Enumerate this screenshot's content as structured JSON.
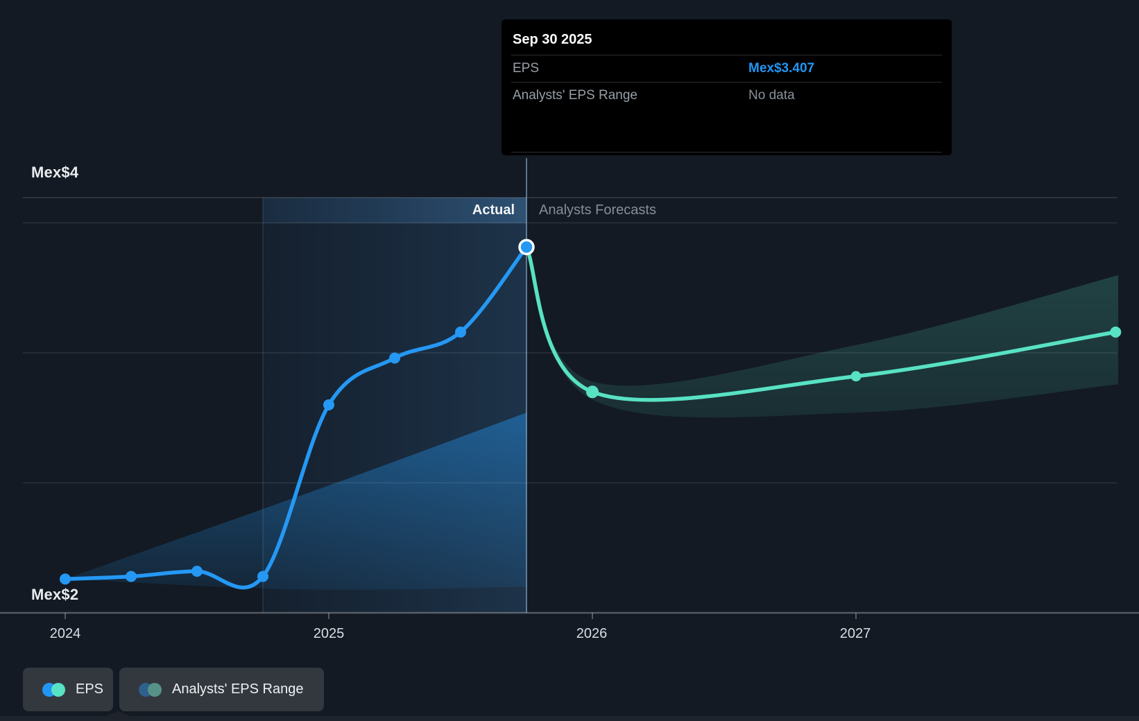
{
  "tooltip": {
    "title": "Sep 30 2025",
    "rows": [
      {
        "label": "EPS",
        "value": "Mex$3.407",
        "highlight": true
      },
      {
        "label": "Analysts' EPS Range",
        "value": "No data",
        "highlight": false
      }
    ]
  },
  "header": {
    "actual_label": "Actual",
    "forecast_label": "Analysts Forecasts"
  },
  "y_axis": {
    "top_label": "Mex$4",
    "bottom_label": "Mex$2"
  },
  "x_axis": {
    "ticks": [
      "2024",
      "2025",
      "2026",
      "2027"
    ]
  },
  "legend": [
    {
      "id": "eps",
      "label": "EPS",
      "dot_colors": [
        "#2196f3",
        "#57e3c4"
      ]
    },
    {
      "id": "range",
      "label": "Analysts' EPS Range",
      "dot_colors": [
        "#2e618c",
        "#579288"
      ]
    }
  ],
  "colors": {
    "background": "#131a23",
    "eps_actual_line": "#2598f4",
    "eps_forecast_line": "#58e2c3",
    "actual_band": "rgba(36,152,244,0.38)",
    "forecast_band": "rgba(88,226,195,0.17)",
    "tooltip_value": "#2196f3",
    "divider_line": "rgba(151,193,229,0.55)",
    "gridline": "rgba(255,255,255,0.10)"
  },
  "chart_data": {
    "type": "line",
    "title": "EPS: actual vs analysts forecasts (Mex$)",
    "currency_prefix": "Mex$",
    "xlim": [
      2023.95,
      2028.0
    ],
    "ylim": [
      2,
      4
    ],
    "grid": true,
    "gridline_values": [
      3.5,
      3.0,
      2.5
    ],
    "x_tick_years": [
      2024,
      2025,
      2026,
      2027
    ],
    "divider_year": 2025.75,
    "highlight_span_years": [
      2024.75,
      2025.75
    ],
    "tooltip_point": {
      "date": "Sep 30 2025",
      "eps": 3.407
    },
    "series": [
      {
        "name": "EPS (actual)",
        "color": "#2598f4",
        "points": [
          [
            2024.0,
            2.13
          ],
          [
            2024.25,
            2.14
          ],
          [
            2024.5,
            2.16
          ],
          [
            2024.75,
            2.14
          ],
          [
            2025.0,
            2.8
          ],
          [
            2025.25,
            2.98
          ],
          [
            2025.5,
            3.08
          ],
          [
            2025.75,
            3.407
          ]
        ]
      },
      {
        "name": "EPS (analysts forecast)",
        "color": "#58e2c3",
        "points": [
          [
            2025.75,
            3.407
          ],
          [
            2026.0,
            2.85
          ],
          [
            2027.0,
            2.91
          ],
          [
            2027.985,
            3.08
          ]
        ]
      }
    ],
    "bands": [
      {
        "name": "historical range",
        "top": [
          [
            2024.0,
            2.13
          ],
          [
            2025.0,
            2.49
          ],
          [
            2025.75,
            2.77
          ]
        ],
        "bottom": [
          [
            2024.0,
            2.13
          ],
          [
            2024.9,
            2.09
          ],
          [
            2025.75,
            2.1
          ]
        ]
      },
      {
        "name": "analysts EPS range",
        "top": [
          [
            2025.75,
            3.407
          ],
          [
            2026.0,
            2.89
          ],
          [
            2027.0,
            3.03
          ],
          [
            2028.0,
            3.3
          ]
        ],
        "bottom": [
          [
            2025.75,
            3.407
          ],
          [
            2026.0,
            2.82
          ],
          [
            2027.0,
            2.77
          ],
          [
            2028.0,
            2.88
          ]
        ]
      }
    ]
  }
}
